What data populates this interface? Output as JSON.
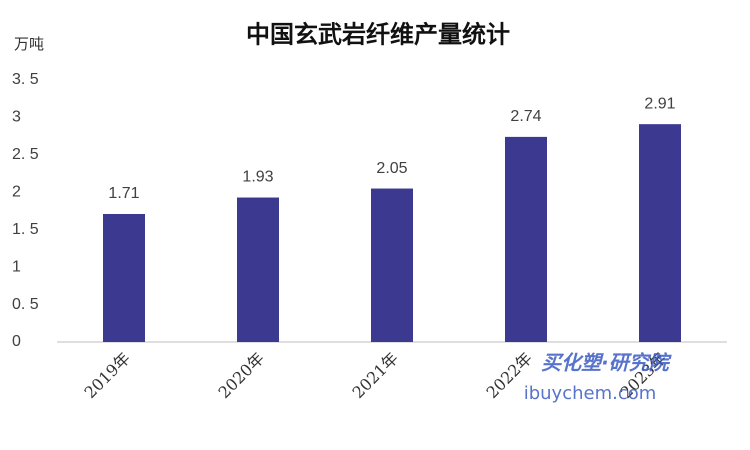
{
  "chart_data": {
    "type": "bar",
    "title": "中国玄武岩纤维产量统计",
    "y_label": "万吨",
    "categories": [
      "2019年",
      "2020年",
      "2021年",
      "2022年",
      "2023年"
    ],
    "values": [
      1.71,
      1.93,
      2.05,
      2.74,
      2.91
    ],
    "color": "#3b3990",
    "ylim": [
      0,
      3.5
    ],
    "yticks": [
      0,
      {
        "value": 0.5,
        "label": "0. 5"
      },
      1,
      {
        "value": 1.5,
        "label": "1. 5"
      },
      2,
      {
        "value": 2.5,
        "label": "2. 5"
      },
      3,
      {
        "value": 3.5,
        "label": "3. 5"
      }
    ],
    "grid": false,
    "watermark": [
      "买化塑·研究院",
      "ibuychem.com"
    ]
  }
}
